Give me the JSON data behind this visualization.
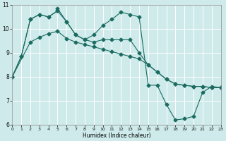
{
  "xlabel": "Humidex (Indice chaleur)",
  "xlim": [
    0,
    23
  ],
  "ylim": [
    6,
    11
  ],
  "xticks": [
    0,
    1,
    2,
    3,
    4,
    5,
    6,
    7,
    8,
    9,
    10,
    11,
    12,
    13,
    14,
    15,
    16,
    17,
    18,
    19,
    20,
    21,
    22,
    23
  ],
  "yticks": [
    6,
    7,
    8,
    9,
    10,
    11
  ],
  "background_color": "#ceeaea",
  "line_color": "#1a6b60",
  "grid_color": "#ffffff",
  "line1_x": [
    0,
    1,
    2,
    3,
    4,
    5,
    5,
    6,
    7,
    8,
    9,
    10,
    11,
    12,
    13,
    14,
    15,
    16,
    17,
    18,
    19,
    20,
    21,
    22,
    23
  ],
  "line1_y": [
    8.0,
    8.85,
    10.4,
    10.6,
    10.5,
    10.75,
    10.85,
    10.3,
    9.75,
    9.55,
    9.75,
    10.15,
    10.4,
    10.7,
    10.6,
    10.5,
    7.65,
    7.65,
    6.85,
    6.2,
    6.25,
    6.35,
    7.35,
    7.6,
    7.55
  ],
  "line2_x": [
    0,
    1,
    2,
    3,
    4,
    5,
    6,
    7,
    8,
    9,
    10,
    11,
    12,
    13,
    14,
    15,
    16,
    17,
    18,
    19,
    20,
    21,
    22,
    23
  ],
  "line2_y": [
    8.0,
    8.85,
    10.4,
    10.6,
    10.5,
    10.75,
    10.3,
    9.75,
    9.55,
    9.45,
    9.55,
    9.55,
    9.55,
    9.55,
    9.0,
    8.5,
    8.2,
    7.9,
    7.7,
    7.65,
    7.6,
    7.6,
    7.55,
    7.55
  ],
  "line3_x": [
    0,
    2,
    3,
    4,
    5,
    6,
    7,
    8,
    9,
    10,
    11,
    12,
    13,
    14,
    15,
    16,
    17,
    18,
    19,
    20,
    21,
    22,
    23
  ],
  "line3_y": [
    8.0,
    9.45,
    9.65,
    9.8,
    9.9,
    9.6,
    9.45,
    9.35,
    9.25,
    9.15,
    9.05,
    8.95,
    8.85,
    8.75,
    8.5,
    8.2,
    7.9,
    7.7,
    7.65,
    7.6,
    7.6,
    7.55,
    7.55
  ],
  "marker": "D",
  "markersize": 2.5,
  "linewidth": 0.8
}
